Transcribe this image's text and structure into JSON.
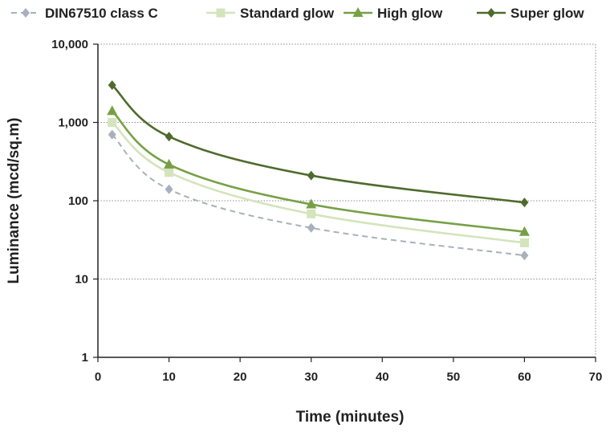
{
  "chart_data": {
    "type": "line",
    "title": "",
    "xlabel": "Time (minutes)",
    "ylabel": "Luminance (mcd/sq.m)",
    "x_scale": "linear",
    "y_scale": "log",
    "xlim": [
      0,
      70
    ],
    "ylim": [
      1,
      10000
    ],
    "x_ticks": [
      0,
      10,
      20,
      30,
      40,
      50,
      60,
      70
    ],
    "x_tick_labels": [
      "0",
      "10",
      "20",
      "30",
      "40",
      "50",
      "60",
      "70"
    ],
    "y_ticks": [
      1,
      10,
      100,
      1000,
      10000
    ],
    "y_tick_labels": [
      "1",
      "10",
      "100",
      "1,000",
      "10,000"
    ],
    "grid": {
      "x": false,
      "y": true,
      "style": "dotted"
    },
    "legend_position": "top",
    "x": [
      2,
      10,
      30,
      60
    ],
    "series": [
      {
        "name": "DIN67510 class C",
        "values": [
          700,
          140,
          45,
          20
        ],
        "color": "#a8b0bb",
        "marker": "diamond",
        "dashed": true
      },
      {
        "name": "Standard glow",
        "values": [
          1000,
          230,
          68,
          29
        ],
        "color": "#d4e4bc",
        "marker": "square",
        "dashed": false
      },
      {
        "name": "High glow",
        "values": [
          1400,
          290,
          90,
          40
        ],
        "color": "#77a046",
        "marker": "triangle",
        "dashed": false
      },
      {
        "name": "Super glow",
        "values": [
          3000,
          660,
          210,
          95
        ],
        "color": "#4f6b2c",
        "marker": "diamond",
        "dashed": false
      }
    ]
  }
}
